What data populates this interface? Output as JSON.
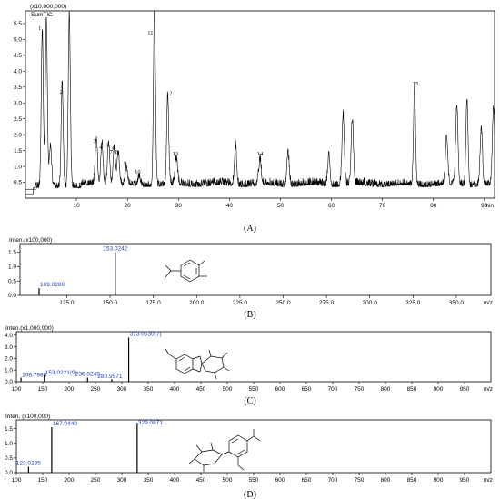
{
  "chart_data": [
    {
      "type": "line",
      "panel": "(A)",
      "scale_label": "(x10,000,000)",
      "trace_label": "SumTIC",
      "xlabel": "min",
      "xlim": [
        0,
        92
      ],
      "ylim": [
        0,
        5.9
      ],
      "x_ticks": [
        "10",
        "20",
        "30",
        "40",
        "50",
        "60",
        "70",
        "80",
        "90"
      ],
      "y_ticks": [
        "0.5",
        "1.0",
        "1.5",
        "2.0",
        "2.5",
        "3.0",
        "3.5",
        "4.0",
        "4.5",
        "5.0",
        "5.5"
      ],
      "peak_labels": [
        {
          "label": "1",
          "x": 2.8,
          "y": 5.3
        },
        {
          "label": "2",
          "x": 7.0,
          "y": 3.3
        },
        {
          "label": "3",
          "x": 13.6,
          "y": 1.75
        },
        {
          "label": "4",
          "x": 14.8,
          "y": 1.55
        },
        {
          "label": "5",
          "x": 16.2,
          "y": 1.62
        },
        {
          "label": "6",
          "x": 17.3,
          "y": 1.52
        },
        {
          "label": "7",
          "x": 16.8,
          "y": 1.4
        },
        {
          "label": "8",
          "x": 17.9,
          "y": 1.4
        },
        {
          "label": "9",
          "x": 19.6,
          "y": 1.05
        },
        {
          "label": "10",
          "x": 22.0,
          "y": 0.78
        },
        {
          "label": "11",
          "x": 24.5,
          "y": 5.15
        },
        {
          "label": "12",
          "x": 28.2,
          "y": 3.25
        },
        {
          "label": "13",
          "x": 29.4,
          "y": 1.35
        },
        {
          "label": "14",
          "x": 46.0,
          "y": 1.35
        },
        {
          "label": "15",
          "x": 76.5,
          "y": 3.55
        }
      ],
      "peaks": [
        {
          "x": 3.3,
          "y": 5.3
        },
        {
          "x": 4.1,
          "y": 5.6
        },
        {
          "x": 4.9,
          "y": 1.6
        },
        {
          "x": 7.2,
          "y": 3.6
        },
        {
          "x": 8.6,
          "y": 5.8
        },
        {
          "x": 13.9,
          "y": 1.85
        },
        {
          "x": 15.0,
          "y": 1.7
        },
        {
          "x": 16.3,
          "y": 1.7
        },
        {
          "x": 17.4,
          "y": 1.55
        },
        {
          "x": 18.2,
          "y": 1.4
        },
        {
          "x": 19.8,
          "y": 0.95
        },
        {
          "x": 22.3,
          "y": 0.65
        },
        {
          "x": 25.3,
          "y": 5.9
        },
        {
          "x": 27.9,
          "y": 3.25
        },
        {
          "x": 29.6,
          "y": 1.2
        },
        {
          "x": 41.2,
          "y": 1.6
        },
        {
          "x": 46.0,
          "y": 1.2
        },
        {
          "x": 51.5,
          "y": 1.4
        },
        {
          "x": 59.5,
          "y": 1.3
        },
        {
          "x": 62.3,
          "y": 2.6
        },
        {
          "x": 64.1,
          "y": 2.4
        },
        {
          "x": 76.3,
          "y": 3.4
        },
        {
          "x": 82.6,
          "y": 1.9
        },
        {
          "x": 84.6,
          "y": 2.9
        },
        {
          "x": 86.6,
          "y": 3.1
        },
        {
          "x": 89.4,
          "y": 2.2
        },
        {
          "x": 91.8,
          "y": 2.8
        }
      ]
    },
    {
      "type": "bar",
      "panel": "(B)",
      "ylabel": "Inten.(x100,000)",
      "xlabel": "m/z",
      "xlim": [
        98,
        370
      ],
      "ylim": [
        0,
        1.8
      ],
      "x_ticks": [
        "125.0",
        "150.0",
        "175.0",
        "200.0",
        "225.0",
        "250.0",
        "275.0",
        "300.0",
        "325.0",
        "350.0"
      ],
      "y_ticks": [
        "0.0",
        "0.5",
        "1.0",
        "1.5"
      ],
      "peaks": [
        {
          "mz": 109.0286,
          "intensity": 0.25,
          "label": "109.0286"
        },
        {
          "mz": 153.0242,
          "intensity": 1.5,
          "label": "153.0242"
        }
      ]
    },
    {
      "type": "bar",
      "panel": "(C)",
      "ylabel": "Inten.(x1,000,000)",
      "xlabel": "m/z",
      "xlim": [
        100,
        1000
      ],
      "ylim": [
        0,
        4.3
      ],
      "x_ticks": [
        "100",
        "150",
        "200",
        "250",
        "300",
        "350",
        "400",
        "450",
        "500",
        "550",
        "600",
        "650",
        "700",
        "750",
        "800",
        "850",
        "900",
        "950"
      ],
      "y_ticks": [
        "0.0",
        "1.0",
        "2.0",
        "3.0",
        "4.0"
      ],
      "peaks": [
        {
          "mz": 108.7988,
          "intensity": 0.35,
          "label": "108.7988"
        },
        {
          "mz": 153.0221,
          "intensity": 0.55,
          "label": "153.0221(9)"
        },
        {
          "mz": 235.0249,
          "intensity": 0.35,
          "label": "235.0249"
        },
        {
          "mz": 280.9571,
          "intensity": 0.22,
          "label": "280.9571"
        },
        {
          "mz": 313.053,
          "intensity": 3.8,
          "label": "313.0530(7)"
        }
      ]
    },
    {
      "type": "bar",
      "panel": "(D)",
      "ylabel": "Inten. (x100,000)",
      "xlabel": "m/z",
      "xlim": [
        100,
        1000
      ],
      "ylim": [
        0,
        1.8
      ],
      "x_ticks": [
        "100",
        "150",
        "200",
        "250",
        "300",
        "350",
        "400",
        "450",
        "500",
        "550",
        "600",
        "650",
        "700",
        "750",
        "800",
        "850",
        "900",
        "950"
      ],
      "y_ticks": [
        "0.0",
        "0.5",
        "1.0",
        "1.5"
      ],
      "peaks": [
        {
          "mz": 123.0285,
          "intensity": 0.2,
          "label": "123.0285"
        },
        {
          "mz": 167.044,
          "intensity": 1.55,
          "label": "167.0440"
        },
        {
          "mz": 329.0871,
          "intensity": 1.7,
          "label": "329.0871"
        }
      ]
    }
  ]
}
